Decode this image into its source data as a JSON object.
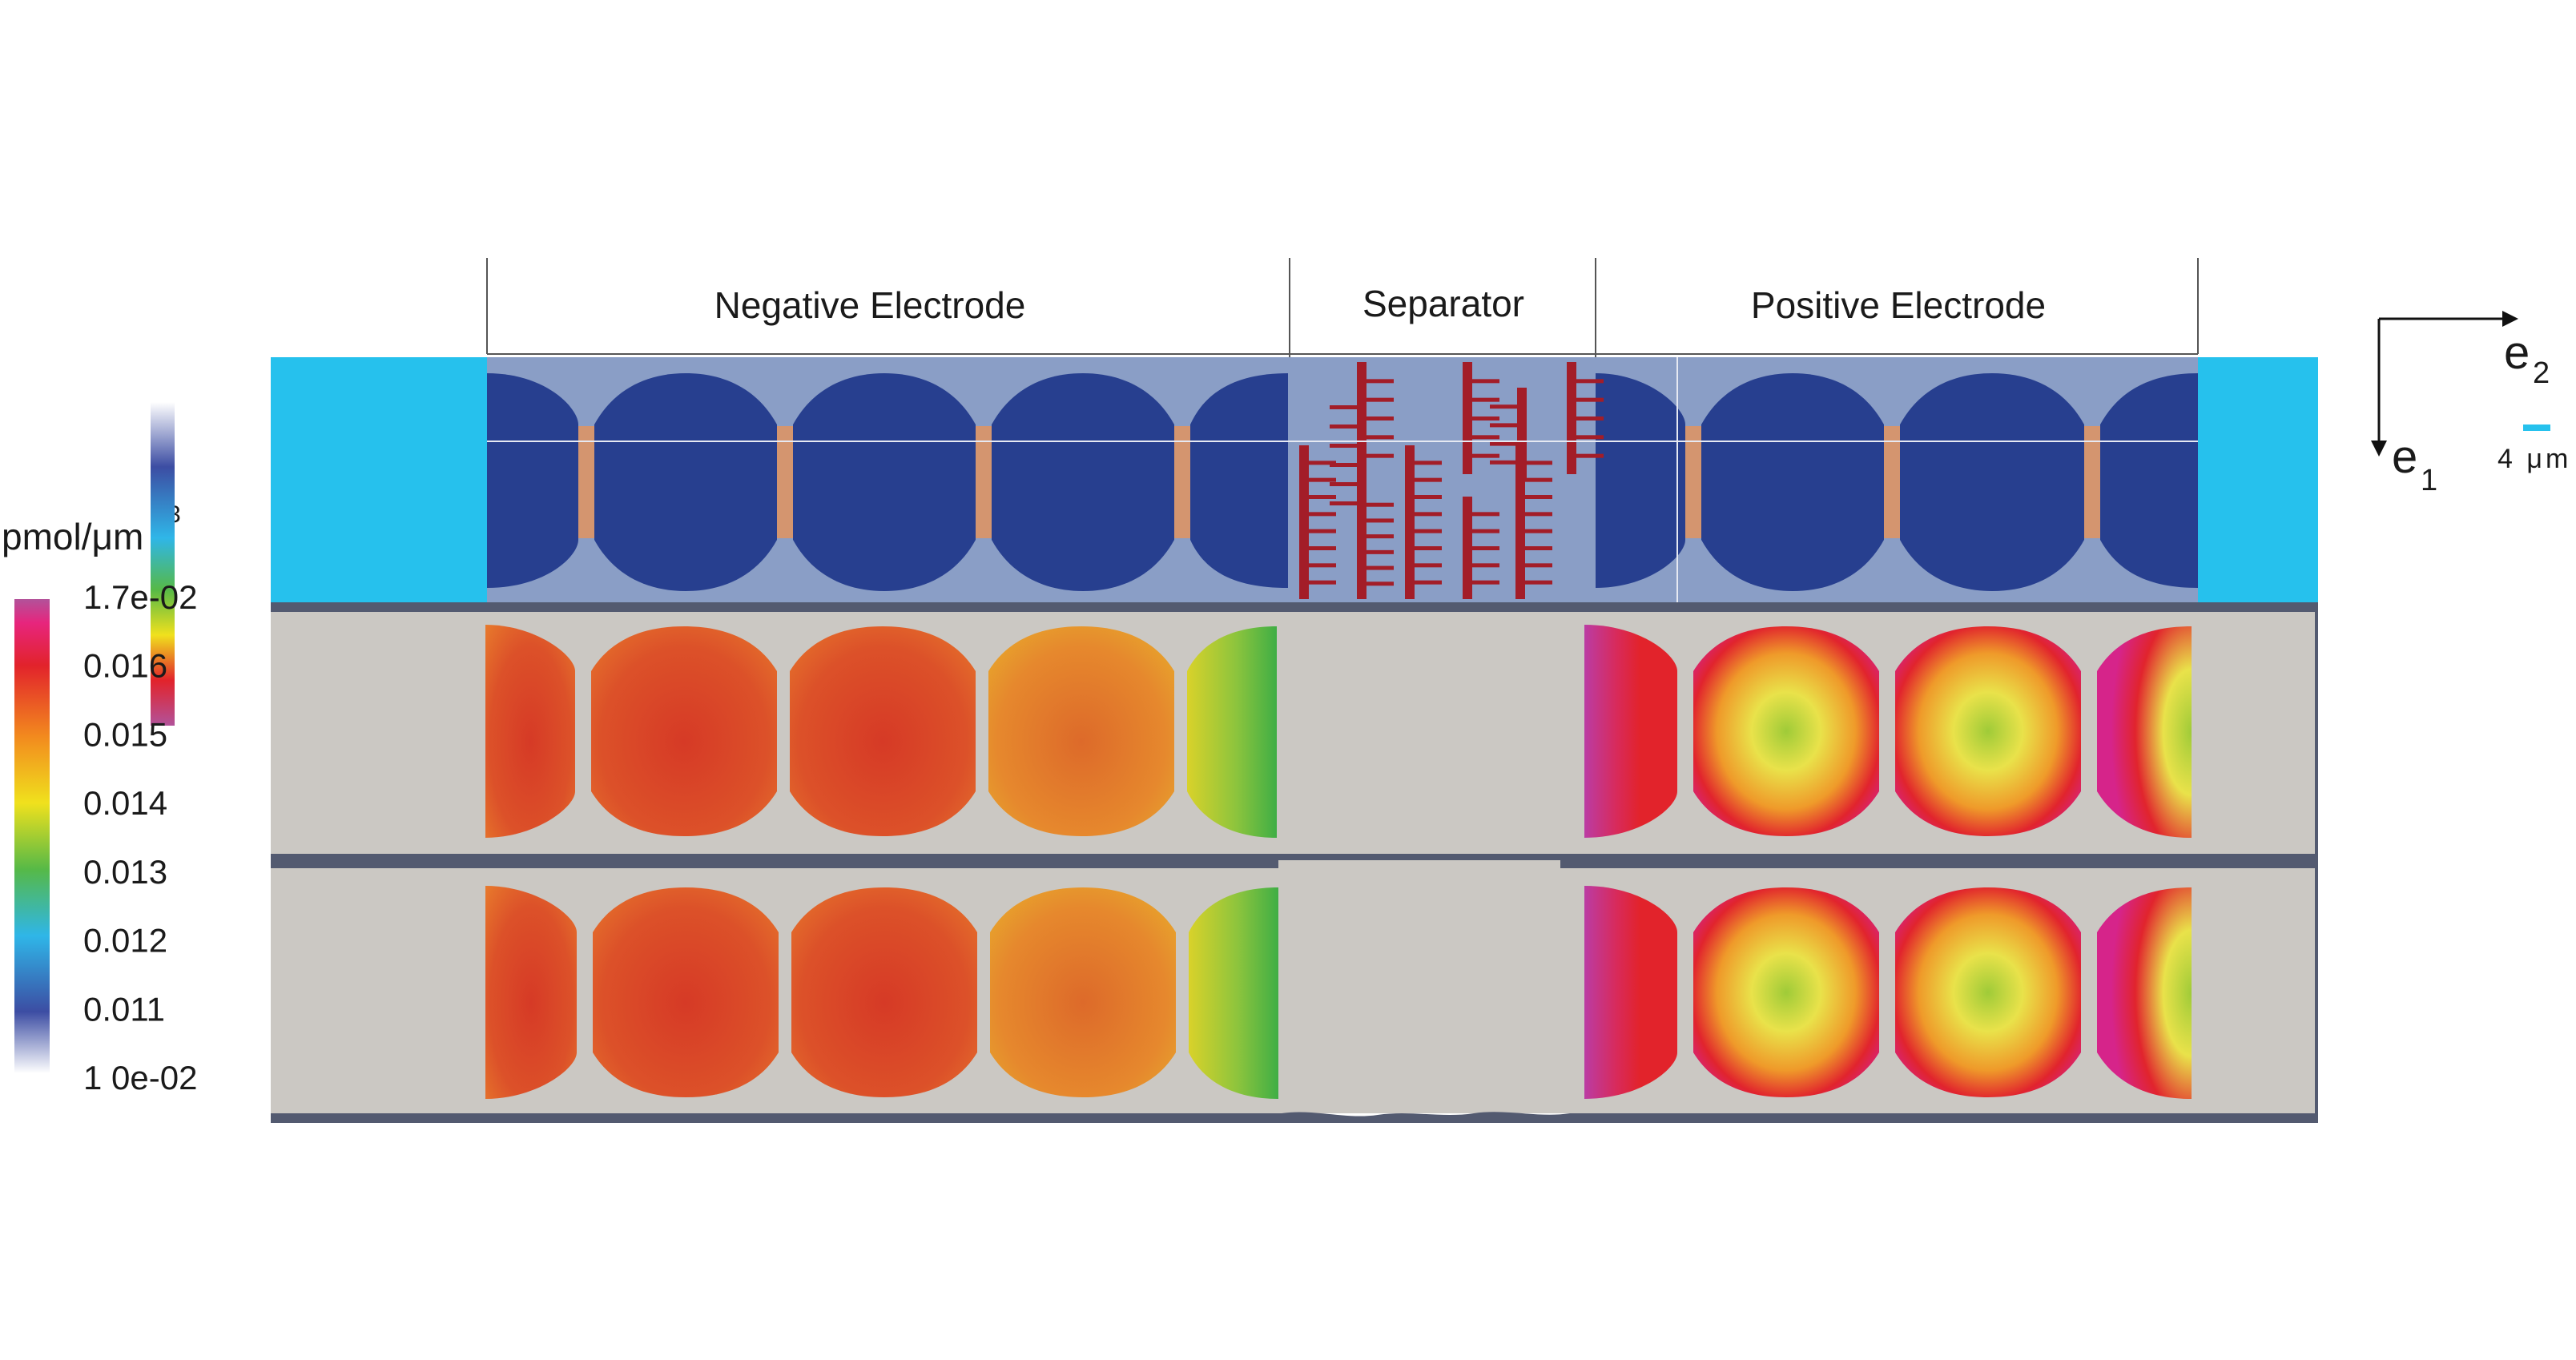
{
  "sections": {
    "negative": "Negative Electrode",
    "separator": "Separator",
    "positive": "Positive Electrode"
  },
  "colorbar": {
    "unit_base": "pmol/μm",
    "unit_exp": "3",
    "ticks": [
      "1.7e-02",
      "0.016",
      "0.015",
      "0.014",
      "0.013",
      "0.012",
      "0.011",
      "1 0e-02"
    ],
    "min": 0.01,
    "max": 0.017,
    "colors": [
      "#ffffff",
      "#3c4da3",
      "#2fb6e8",
      "#56b947",
      "#f0e11d",
      "#f28a1e",
      "#e2232b",
      "#e7257d",
      "#b2529a"
    ]
  },
  "axes": {
    "e1": "e",
    "e1_sub": "1",
    "e2": "e",
    "e2_sub": "2",
    "scale": "4 μm"
  },
  "colors": {
    "collector": "#26c1ed",
    "electrolyte": "#8a9ec6",
    "particle": "#273f8f",
    "binder": "#d4956f",
    "separator_fiber": "#a31d28",
    "panel_bg": "#cbc8c3",
    "panel_edge": "#535a70"
  }
}
